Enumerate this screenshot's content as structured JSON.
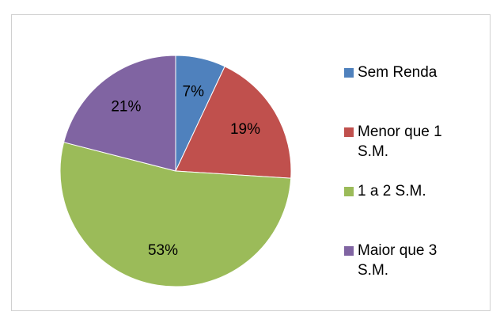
{
  "chart_data": {
    "type": "pie",
    "categories": [
      "Sem Renda",
      "Menor que 1 S.M.",
      "1 a 2 S.M.",
      "Maior que 3 S.M."
    ],
    "values": [
      7,
      19,
      53,
      21
    ],
    "value_labels": [
      "7%",
      "19%",
      "53%",
      "21%"
    ],
    "colors": [
      "#4f81bd",
      "#c0504d",
      "#9bbb59",
      "#8064a2"
    ],
    "legend": "right"
  }
}
